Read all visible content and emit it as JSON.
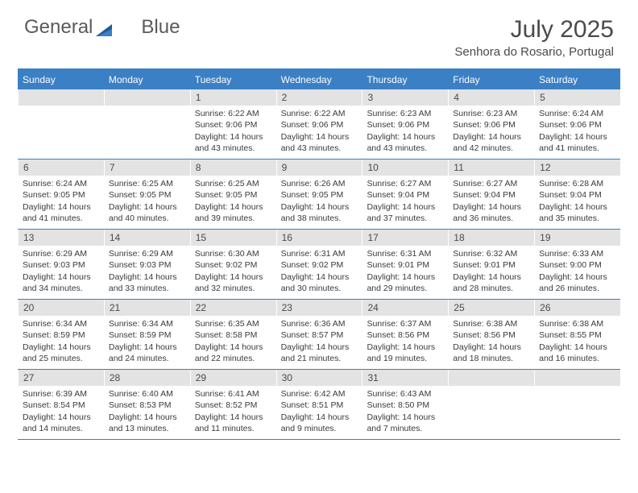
{
  "brand": {
    "part1": "General",
    "part2": "Blue"
  },
  "colors": {
    "accent": "#3b7fc4",
    "header_bg": "#3b7fc4",
    "daynum_bg": "#e3e3e3",
    "text": "#333333",
    "title_text": "#4a4a4a",
    "logo_text": "#5a5a5a",
    "logo_icon": "#205a9a"
  },
  "title": "July 2025",
  "location": "Senhora do Rosario, Portugal",
  "day_names": [
    "Sunday",
    "Monday",
    "Tuesday",
    "Wednesday",
    "Thursday",
    "Friday",
    "Saturday"
  ],
  "label_sunrise": "Sunrise: ",
  "label_sunset": "Sunset: ",
  "label_daylight": "Daylight: ",
  "weeks": [
    [
      {
        "n": "",
        "empty": true
      },
      {
        "n": "",
        "empty": true
      },
      {
        "n": "1",
        "sr": "6:22 AM",
        "ss": "9:06 PM",
        "dl": "14 hours and 43 minutes."
      },
      {
        "n": "2",
        "sr": "6:22 AM",
        "ss": "9:06 PM",
        "dl": "14 hours and 43 minutes."
      },
      {
        "n": "3",
        "sr": "6:23 AM",
        "ss": "9:06 PM",
        "dl": "14 hours and 43 minutes."
      },
      {
        "n": "4",
        "sr": "6:23 AM",
        "ss": "9:06 PM",
        "dl": "14 hours and 42 minutes."
      },
      {
        "n": "5",
        "sr": "6:24 AM",
        "ss": "9:06 PM",
        "dl": "14 hours and 41 minutes."
      }
    ],
    [
      {
        "n": "6",
        "sr": "6:24 AM",
        "ss": "9:05 PM",
        "dl": "14 hours and 41 minutes."
      },
      {
        "n": "7",
        "sr": "6:25 AM",
        "ss": "9:05 PM",
        "dl": "14 hours and 40 minutes."
      },
      {
        "n": "8",
        "sr": "6:25 AM",
        "ss": "9:05 PM",
        "dl": "14 hours and 39 minutes."
      },
      {
        "n": "9",
        "sr": "6:26 AM",
        "ss": "9:05 PM",
        "dl": "14 hours and 38 minutes."
      },
      {
        "n": "10",
        "sr": "6:27 AM",
        "ss": "9:04 PM",
        "dl": "14 hours and 37 minutes."
      },
      {
        "n": "11",
        "sr": "6:27 AM",
        "ss": "9:04 PM",
        "dl": "14 hours and 36 minutes."
      },
      {
        "n": "12",
        "sr": "6:28 AM",
        "ss": "9:04 PM",
        "dl": "14 hours and 35 minutes."
      }
    ],
    [
      {
        "n": "13",
        "sr": "6:29 AM",
        "ss": "9:03 PM",
        "dl": "14 hours and 34 minutes."
      },
      {
        "n": "14",
        "sr": "6:29 AM",
        "ss": "9:03 PM",
        "dl": "14 hours and 33 minutes."
      },
      {
        "n": "15",
        "sr": "6:30 AM",
        "ss": "9:02 PM",
        "dl": "14 hours and 32 minutes."
      },
      {
        "n": "16",
        "sr": "6:31 AM",
        "ss": "9:02 PM",
        "dl": "14 hours and 30 minutes."
      },
      {
        "n": "17",
        "sr": "6:31 AM",
        "ss": "9:01 PM",
        "dl": "14 hours and 29 minutes."
      },
      {
        "n": "18",
        "sr": "6:32 AM",
        "ss": "9:01 PM",
        "dl": "14 hours and 28 minutes."
      },
      {
        "n": "19",
        "sr": "6:33 AM",
        "ss": "9:00 PM",
        "dl": "14 hours and 26 minutes."
      }
    ],
    [
      {
        "n": "20",
        "sr": "6:34 AM",
        "ss": "8:59 PM",
        "dl": "14 hours and 25 minutes."
      },
      {
        "n": "21",
        "sr": "6:34 AM",
        "ss": "8:59 PM",
        "dl": "14 hours and 24 minutes."
      },
      {
        "n": "22",
        "sr": "6:35 AM",
        "ss": "8:58 PM",
        "dl": "14 hours and 22 minutes."
      },
      {
        "n": "23",
        "sr": "6:36 AM",
        "ss": "8:57 PM",
        "dl": "14 hours and 21 minutes."
      },
      {
        "n": "24",
        "sr": "6:37 AM",
        "ss": "8:56 PM",
        "dl": "14 hours and 19 minutes."
      },
      {
        "n": "25",
        "sr": "6:38 AM",
        "ss": "8:56 PM",
        "dl": "14 hours and 18 minutes."
      },
      {
        "n": "26",
        "sr": "6:38 AM",
        "ss": "8:55 PM",
        "dl": "14 hours and 16 minutes."
      }
    ],
    [
      {
        "n": "27",
        "sr": "6:39 AM",
        "ss": "8:54 PM",
        "dl": "14 hours and 14 minutes."
      },
      {
        "n": "28",
        "sr": "6:40 AM",
        "ss": "8:53 PM",
        "dl": "14 hours and 13 minutes."
      },
      {
        "n": "29",
        "sr": "6:41 AM",
        "ss": "8:52 PM",
        "dl": "14 hours and 11 minutes."
      },
      {
        "n": "30",
        "sr": "6:42 AM",
        "ss": "8:51 PM",
        "dl": "14 hours and 9 minutes."
      },
      {
        "n": "31",
        "sr": "6:43 AM",
        "ss": "8:50 PM",
        "dl": "14 hours and 7 minutes."
      },
      {
        "n": "",
        "empty": true
      },
      {
        "n": "",
        "empty": true
      }
    ]
  ]
}
